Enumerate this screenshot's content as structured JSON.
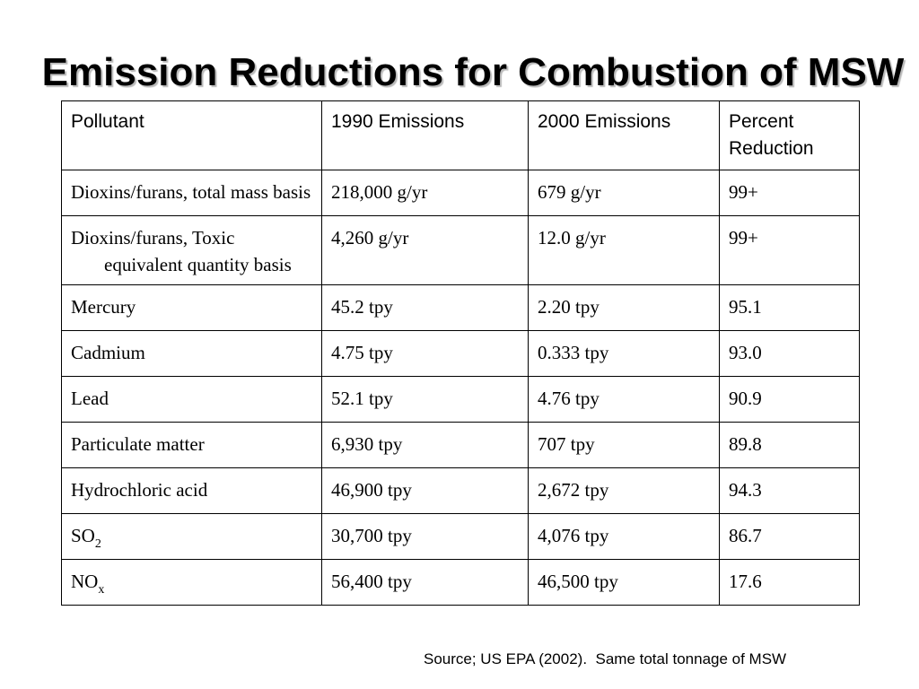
{
  "slide": {
    "title": "Emission Reductions for Combustion of MSW",
    "source_note": "Source; US EPA (2002).  Same total tonnage of MSW"
  },
  "table": {
    "headers": [
      "Pollutant",
      "1990 Emissions",
      "2000 Emissions",
      "Percent Reduction"
    ],
    "rows": [
      {
        "pollutant": "Dioxins/furans, total mass basis",
        "sub": "",
        "e1990": "218,000 g/yr",
        "e2000": "679 g/yr",
        "reduction": "99+"
      },
      {
        "pollutant": "Dioxins/furans, Toxic equivalent quantity basis",
        "sub": "",
        "e1990": "4,260 g/yr",
        "e2000": "12.0 g/yr",
        "reduction": "99+"
      },
      {
        "pollutant": "Mercury",
        "sub": "",
        "e1990": "45.2 tpy",
        "e2000": "2.20 tpy",
        "reduction": "95.1"
      },
      {
        "pollutant": "Cadmium",
        "sub": "",
        "e1990": "4.75 tpy",
        "e2000": "0.333 tpy",
        "reduction": "93.0"
      },
      {
        "pollutant": "Lead",
        "sub": "",
        "e1990": "52.1 tpy",
        "e2000": "4.76 tpy",
        "reduction": "90.9"
      },
      {
        "pollutant": "Particulate matter",
        "sub": "",
        "e1990": "6,930 tpy",
        "e2000": "707 tpy",
        "reduction": "89.8"
      },
      {
        "pollutant": "Hydrochloric acid",
        "sub": "",
        "e1990": "46,900 tpy",
        "e2000": "2,672 tpy",
        "reduction": "94.3"
      },
      {
        "pollutant": "SO",
        "sub": "2",
        "e1990": "30,700 tpy",
        "e2000": "4,076 tpy",
        "reduction": "86.7"
      },
      {
        "pollutant": "NO",
        "sub": "x",
        "e1990": "56,400 tpy",
        "e2000": "46,500 tpy",
        "reduction": "17.6"
      }
    ]
  }
}
